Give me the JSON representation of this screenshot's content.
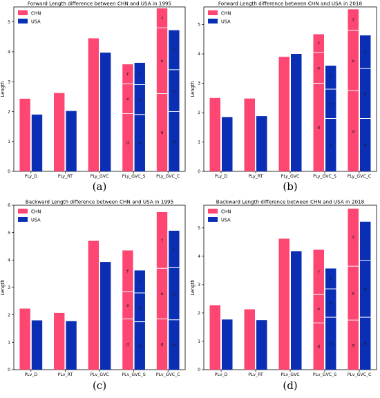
{
  "colors": {
    "CHN": "#fd4672",
    "USA": "#0a2fb5"
  },
  "legend": [
    "CHN",
    "USA"
  ],
  "chart_data": [
    {
      "type": "bar",
      "panel_label": "(a)",
      "title": "Forward Length difference between CHN and USA in 1995",
      "ylabel": "Length",
      "ylim": [
        0,
        5.5
      ],
      "yticks": [
        "0",
        "1",
        "2",
        "3",
        "4",
        "5"
      ],
      "categories": [
        "PLy_D",
        "PLy_RT",
        "PLy_GVC",
        "PLy_GVC_S",
        "PLy_GVC_C"
      ],
      "series": [
        {
          "name": "CHN",
          "values": [
            2.43,
            2.62,
            4.45,
            3.58,
            5.45
          ],
          "stacks": [
            null,
            null,
            null,
            [
              1.93,
              1.0,
              0.65
            ],
            [
              2.6,
              2.2,
              0.65
            ]
          ]
        },
        {
          "name": "USA",
          "values": [
            1.9,
            2.02,
            3.97,
            3.63,
            4.72
          ],
          "stacks": [
            null,
            null,
            null,
            [
              1.9,
              1.0,
              0.73
            ],
            [
              2.0,
              1.4,
              1.32
            ]
          ]
        }
      ],
      "segment_labels": [
        "d",
        "e",
        "f"
      ]
    },
    {
      "type": "bar",
      "panel_label": "(b)",
      "title": "Forward Length difference between CHN and USA in 2018",
      "ylabel": "Length",
      "ylim": [
        0,
        5.6
      ],
      "yticks": [
        "0",
        "1",
        "2",
        "3",
        "4",
        "5"
      ],
      "categories": [
        "PLy_D",
        "PLy_RT",
        "PLy_GVC",
        "PLy_GVC_S",
        "PLy_GVC_C"
      ],
      "series": [
        {
          "name": "CHN",
          "values": [
            2.5,
            2.48,
            3.9,
            4.67,
            5.52
          ],
          "stacks": [
            null,
            null,
            null,
            [
              3.0,
              1.05,
              0.62
            ],
            [
              2.75,
              2.05,
              0.72
            ]
          ]
        },
        {
          "name": "USA",
          "values": [
            1.85,
            1.88,
            4.0,
            3.6,
            4.63
          ],
          "stacks": [
            null,
            null,
            null,
            [
              1.8,
              1.0,
              0.8
            ],
            [
              1.8,
              1.7,
              1.13
            ]
          ]
        }
      ],
      "segment_labels": [
        "d",
        "e",
        "f"
      ]
    },
    {
      "type": "bar",
      "panel_label": "(c)",
      "title": "Backward Length difference between CHN and USA in 1995",
      "ylabel": "Length",
      "ylim": [
        0,
        6.0
      ],
      "yticks": [
        "0",
        "1",
        "2",
        "3",
        "4",
        "5",
        "6"
      ],
      "categories": [
        "PLv_D",
        "PLv_RT",
        "PLv_GVC",
        "PLv_GVC_S",
        "PLv_GVC_C"
      ],
      "series": [
        {
          "name": "CHN",
          "values": [
            2.23,
            2.07,
            4.7,
            4.35,
            5.75
          ],
          "stacks": [
            null,
            null,
            null,
            [
              1.85,
              1.0,
              1.5
            ],
            [
              1.85,
              1.85,
              2.05
            ]
          ]
        },
        {
          "name": "USA",
          "values": [
            1.8,
            1.77,
            3.93,
            3.62,
            5.07
          ],
          "stacks": [
            null,
            null,
            null,
            [
              1.75,
              1.05,
              0.82
            ],
            [
              1.82,
              1.9,
              1.35
            ]
          ]
        }
      ],
      "segment_labels": [
        "d",
        "e",
        "f"
      ]
    },
    {
      "type": "bar",
      "panel_label": "(d)",
      "title": "Backward Length difference between CHN and USA in 2018",
      "ylabel": "Length",
      "ylim": [
        0,
        5.8
      ],
      "yticks": [
        "0",
        "1",
        "2",
        "3",
        "4",
        "5"
      ],
      "categories": [
        "PLv_D",
        "PLv_RT",
        "PLv_GVC",
        "PLv_GVC_S",
        "PLv_GVC_C"
      ],
      "series": [
        {
          "name": "CHN",
          "values": [
            2.27,
            2.13,
            4.62,
            4.23,
            5.68
          ],
          "stacks": [
            null,
            null,
            null,
            [
              1.65,
              1.0,
              1.58
            ],
            [
              1.75,
              1.9,
              2.03
            ]
          ]
        },
        {
          "name": "USA",
          "values": [
            1.77,
            1.75,
            4.18,
            3.57,
            5.22
          ],
          "stacks": [
            null,
            null,
            null,
            [
              1.85,
              1.0,
              0.72
            ],
            [
              1.85,
              2.0,
              1.37
            ]
          ]
        }
      ],
      "segment_labels": [
        "d",
        "e",
        "f"
      ]
    }
  ]
}
